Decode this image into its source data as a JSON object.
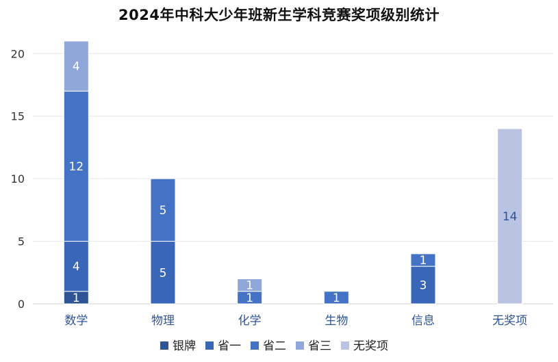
{
  "chart_data": {
    "type": "bar",
    "stacked": true,
    "title": "2024年中科大少年班新生学科竞赛奖项级别统计",
    "xlabel": "",
    "ylabel": "",
    "ylim": [
      0,
      21
    ],
    "yticks": [
      0,
      5,
      10,
      15,
      20
    ],
    "grid": true,
    "legend_position": "bottom",
    "categories": [
      "数学",
      "物理",
      "化学",
      "生物",
      "信息",
      "无奖项"
    ],
    "series": [
      {
        "name": "银牌",
        "color": "#2F5496",
        "label_color": "#ffffff",
        "values": [
          1,
          0,
          0,
          0,
          0,
          0
        ]
      },
      {
        "name": "省一",
        "color": "#3A66B8",
        "label_color": "#ffffff",
        "values": [
          4,
          5,
          0,
          0,
          3,
          0
        ]
      },
      {
        "name": "省二",
        "color": "#4472C4",
        "label_color": "#ffffff",
        "values": [
          12,
          5,
          1,
          1,
          1,
          0
        ]
      },
      {
        "name": "省三",
        "color": "#8FA8D9",
        "label_color": "#ffffff",
        "values": [
          4,
          0,
          1,
          0,
          0,
          0
        ]
      },
      {
        "name": "无奖项",
        "color": "#B9C4E3",
        "label_color": "#2F5496",
        "values": [
          0,
          0,
          0,
          0,
          0,
          14
        ]
      }
    ],
    "category_label_color": "#2F5496"
  }
}
